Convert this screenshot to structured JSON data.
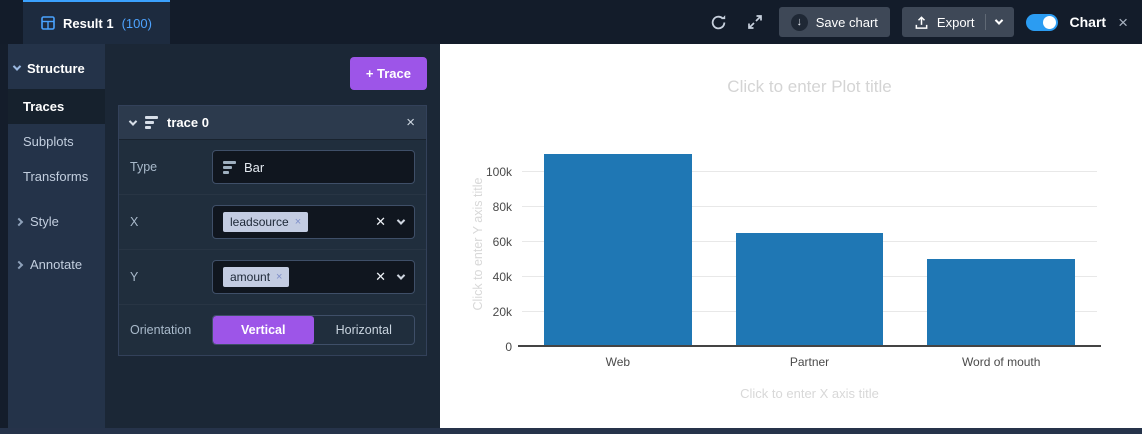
{
  "topbar": {
    "tab": {
      "title": "Result 1",
      "count": "(100)"
    },
    "save_chart_label": "Save chart",
    "export_label": "Export",
    "chart_toggle_label": "Chart",
    "toggle_state": "on"
  },
  "icons": {
    "close_glyph": "×",
    "clear_glyph": "✕",
    "download_glyph": "↓"
  },
  "sidebar": {
    "items": [
      {
        "label": "Structure"
      },
      {
        "label": "Traces"
      },
      {
        "label": "Subplots"
      },
      {
        "label": "Transforms"
      },
      {
        "label": "Style"
      },
      {
        "label": "Annotate"
      }
    ]
  },
  "trace_panel": {
    "add_trace_label": "+ Trace",
    "trace_card": {
      "title": "trace 0",
      "type_label": "Type",
      "type_value": "Bar",
      "x_label": "X",
      "x_token": "leadsource",
      "y_label": "Y",
      "y_token": "amount",
      "orientation_label": "Orientation",
      "orientation_options": [
        "Vertical",
        "Horizontal"
      ],
      "orientation_selected": "Vertical"
    }
  },
  "chart_data": {
    "type": "bar",
    "title": "",
    "title_placeholder": "Click to enter Plot title",
    "xaxis_placeholder": "Click to enter X axis title",
    "yaxis_placeholder": "Click to enter Y axis title",
    "categories": [
      "Web",
      "Partner",
      "Word of mouth"
    ],
    "values": [
      110000,
      65000,
      50000
    ],
    "ylim": [
      0,
      118000
    ],
    "ytick_values": [
      0,
      20000,
      40000,
      60000,
      80000,
      100000
    ],
    "ytick_labels": [
      "0",
      "20k",
      "40k",
      "60k",
      "80k",
      "100k"
    ],
    "bar_color": "#1f77b4",
    "grid": true,
    "legend": false
  },
  "colors": {
    "purple": "#9d55e8",
    "toggle-blue": "#2b9cf2",
    "tab-accent": "#3ba2ff",
    "bar-color": "#1f77b4"
  }
}
